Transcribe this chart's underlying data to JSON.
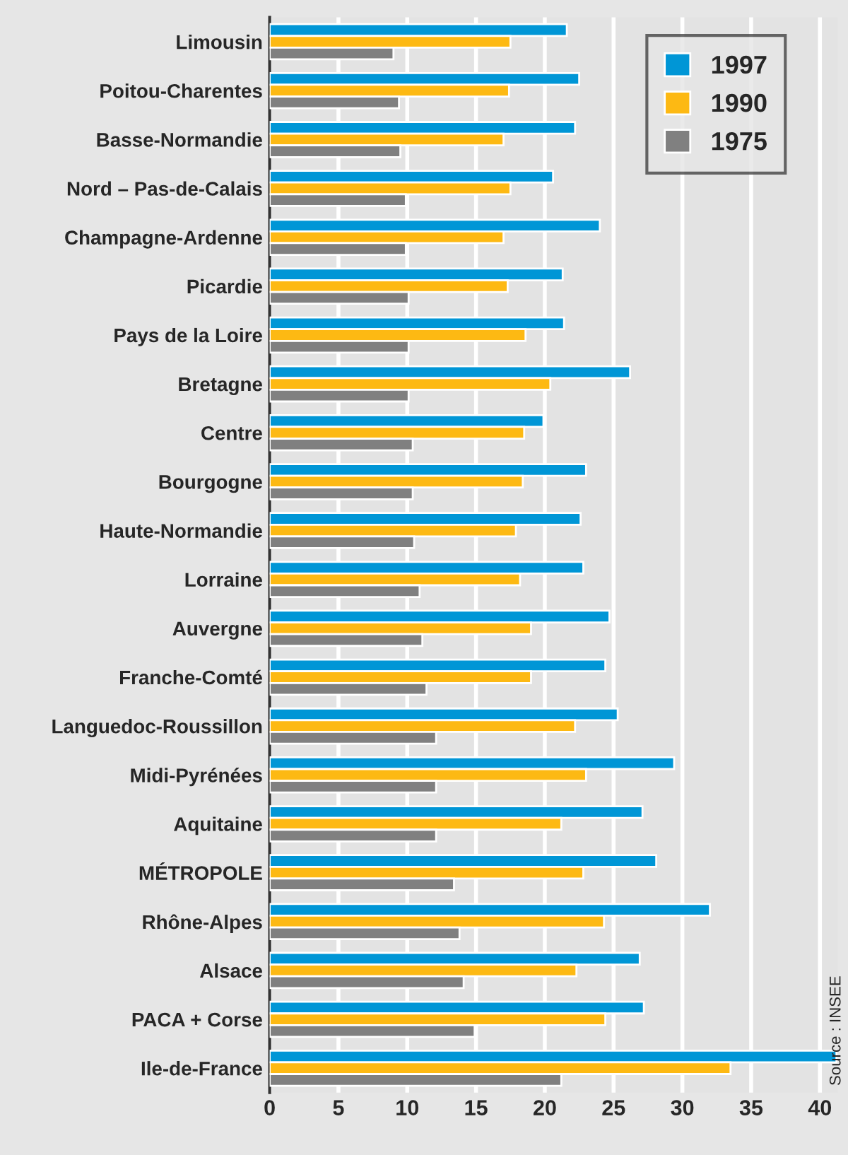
{
  "chart_data": {
    "type": "bar",
    "orientation": "horizontal",
    "categories": [
      "Limousin",
      "Poitou-Charentes",
      "Basse-Normandie",
      "Nord – Pas-de-Calais",
      "Champagne-Ardenne",
      "Picardie",
      "Pays de la Loire",
      "Bretagne",
      "Centre",
      "Bourgogne",
      "Haute-Normandie",
      "Lorraine",
      "Auvergne",
      "Franche-Comté",
      "Languedoc-Roussillon",
      "Midi-Pyrénées",
      "Aquitaine",
      "MÉTROPOLE",
      "Rhône-Alpes",
      "Alsace",
      "PACA + Corse",
      "Ile-de-France"
    ],
    "series": [
      {
        "name": "1997",
        "color": "#0096d6",
        "values": [
          21.6,
          22.5,
          22.2,
          20.6,
          24.0,
          21.3,
          21.4,
          26.2,
          19.9,
          23.0,
          22.6,
          22.8,
          24.7,
          24.4,
          25.3,
          29.4,
          27.1,
          28.1,
          32.0,
          26.9,
          27.2,
          41.2
        ]
      },
      {
        "name": "1990",
        "color": "#fdb913",
        "values": [
          17.5,
          17.4,
          17.0,
          17.5,
          17.0,
          17.3,
          18.6,
          20.4,
          18.5,
          18.4,
          17.9,
          18.2,
          19.0,
          19.0,
          22.2,
          23.0,
          21.2,
          22.8,
          24.3,
          22.3,
          24.4,
          33.5
        ]
      },
      {
        "name": "1975",
        "color": "#808080",
        "values": [
          9.0,
          9.4,
          9.5,
          9.9,
          9.9,
          10.1,
          10.1,
          10.1,
          10.4,
          10.4,
          10.5,
          10.9,
          11.1,
          11.4,
          12.1,
          12.1,
          12.1,
          13.4,
          13.8,
          14.1,
          14.9,
          21.2
        ]
      }
    ],
    "xlim": [
      0,
      41.3
    ],
    "xticks": [
      0,
      5,
      10,
      15,
      20,
      25,
      30,
      35,
      40
    ],
    "grid": "x",
    "legend": "top right",
    "annotations": [
      "Source : INSEE"
    ]
  }
}
